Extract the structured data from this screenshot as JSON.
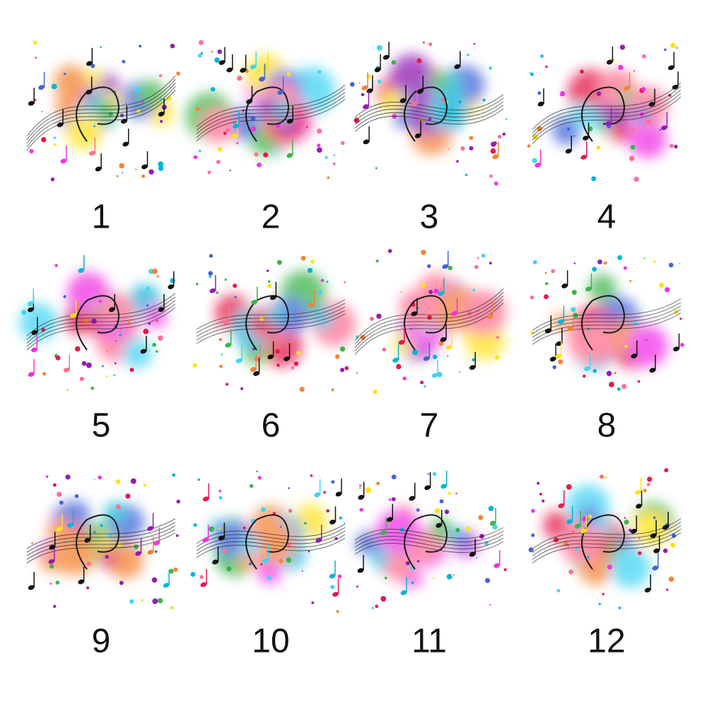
{
  "items": [
    {
      "label": "1"
    },
    {
      "label": "2"
    },
    {
      "label": "3"
    },
    {
      "label": "4"
    },
    {
      "label": "5"
    },
    {
      "label": "6"
    },
    {
      "label": "7"
    },
    {
      "label": "8"
    },
    {
      "label": "9"
    },
    {
      "label": "10"
    },
    {
      "label": "11"
    },
    {
      "label": "12"
    }
  ]
}
